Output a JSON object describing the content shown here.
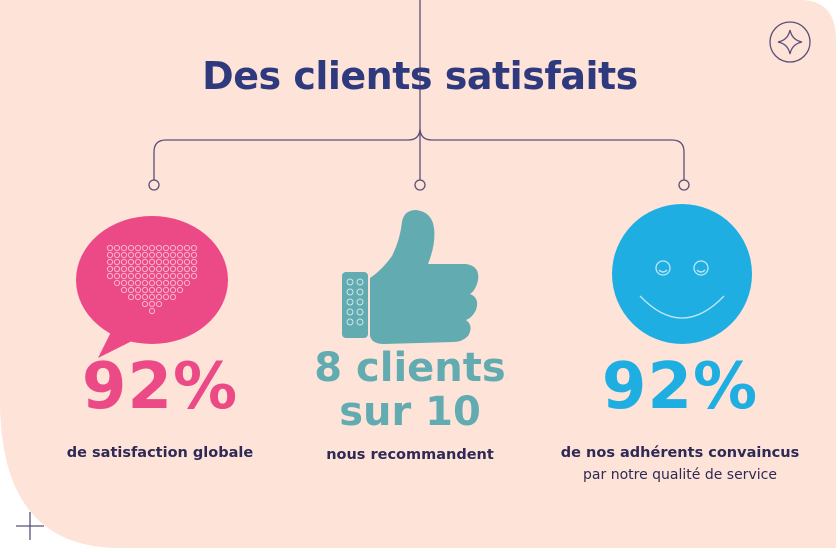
{
  "title": "Des clients satisfaits",
  "stats": [
    {
      "value": "92%",
      "caption": "de satisfaction globale",
      "icon": "heart-speech-bubble-icon"
    },
    {
      "value_line1": "8 clients",
      "value_line2": "sur 10",
      "caption": "nous recommandent",
      "icon": "thumbs-up-icon"
    },
    {
      "value": "92%",
      "caption_line1": "de nos adhérents convaincus",
      "caption_line2": "par notre qualité de service",
      "icon": "smiley-face-icon"
    }
  ],
  "colors": {
    "background": "#fde3d8",
    "title": "#2f3a7e",
    "pink": "#ec4a86",
    "teal": "#62abb0",
    "blue": "#1eaee2",
    "text": "#2f2a55"
  }
}
